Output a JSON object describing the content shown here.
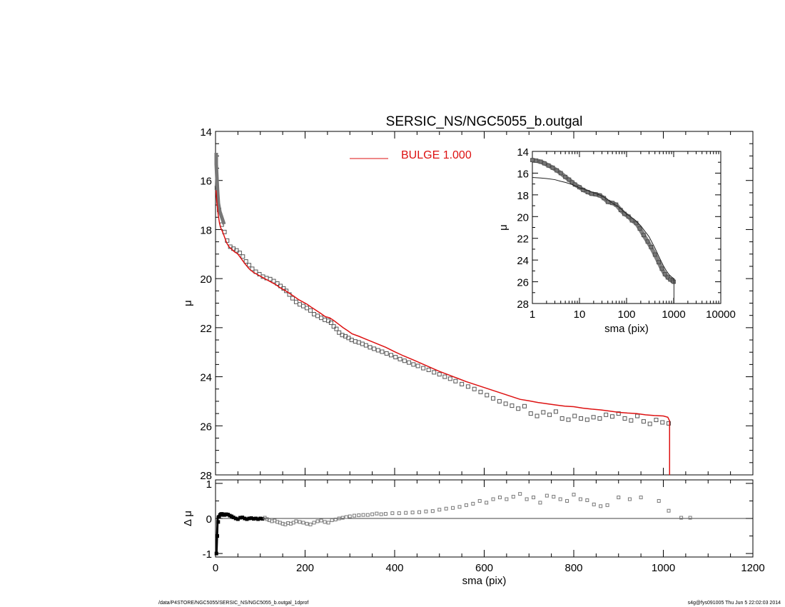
{
  "chart_data": [
    {
      "type": "scatter",
      "panel": "main",
      "title": "SERSIC_NS/NGC5055_b.outgal",
      "xlabel": "",
      "ylabel": "μ",
      "xlim": [
        0,
        1200
      ],
      "ylim": [
        28,
        14
      ],
      "y_inverted": true,
      "x_ticks": [
        0,
        200,
        400,
        600,
        800,
        1000,
        1200
      ],
      "y_ticks": [
        14,
        16,
        18,
        20,
        22,
        24,
        26,
        28
      ],
      "legend": {
        "label": "BULGE  1.000",
        "color": "#dd1111",
        "placement": "top-center"
      },
      "colors": {
        "data": "#555555",
        "model": "#dd1111"
      },
      "series": [
        {
          "name": "data",
          "style": "open-squares",
          "x": [
            3,
            8,
            14,
            20,
            26,
            33,
            40,
            47,
            54,
            61,
            68,
            75,
            82,
            90,
            98,
            106,
            114,
            122,
            130,
            138,
            145,
            152,
            158,
            165,
            172,
            180,
            188,
            196,
            204,
            212,
            220,
            228,
            236,
            244,
            252,
            258,
            264,
            270,
            276,
            283,
            290,
            297,
            304,
            312,
            320,
            328,
            336,
            345,
            354,
            363,
            372,
            382,
            392,
            402,
            412,
            422,
            432,
            442,
            452,
            464,
            476,
            488,
            500,
            512,
            524,
            536,
            550,
            564,
            578,
            592,
            606,
            620,
            634,
            648,
            662,
            676,
            690,
            704,
            718,
            732,
            746,
            760,
            774,
            788,
            802,
            816,
            830,
            844,
            858,
            872,
            886,
            900,
            914,
            928,
            942,
            956,
            970,
            984,
            998,
            1012
          ],
          "y": [
            16.3,
            17.2,
            17.8,
            18.1,
            18.45,
            18.7,
            18.78,
            18.85,
            18.95,
            19.1,
            19.3,
            19.45,
            19.6,
            19.72,
            19.82,
            19.92,
            19.98,
            20.02,
            20.1,
            20.2,
            20.3,
            20.4,
            20.5,
            20.65,
            20.8,
            20.95,
            21.05,
            21.12,
            21.2,
            21.3,
            21.45,
            21.52,
            21.6,
            21.68,
            21.72,
            21.8,
            21.95,
            22.05,
            22.2,
            22.3,
            22.35,
            22.42,
            22.5,
            22.56,
            22.6,
            22.66,
            22.72,
            22.8,
            22.86,
            22.92,
            22.98,
            23.05,
            23.12,
            23.2,
            23.28,
            23.35,
            23.42,
            23.5,
            23.56,
            23.65,
            23.72,
            23.82,
            23.9,
            24.0,
            24.08,
            24.18,
            24.3,
            24.4,
            24.5,
            24.62,
            24.75,
            24.88,
            25.0,
            25.1,
            25.18,
            25.3,
            25.2,
            25.5,
            25.6,
            25.45,
            25.55,
            25.42,
            25.7,
            25.75,
            25.6,
            25.7,
            25.75,
            25.65,
            25.7,
            25.55,
            25.62,
            25.5,
            25.7,
            25.78,
            25.6,
            25.82,
            25.92,
            25.76,
            25.86,
            25.9
          ]
        },
        {
          "name": "model",
          "style": "line",
          "x": [
            1,
            3,
            6,
            9,
            12,
            16,
            20,
            25,
            30,
            36,
            42,
            50,
            58,
            66,
            75,
            85,
            95,
            105,
            115,
            125,
            135,
            145,
            155,
            165,
            175,
            185,
            195,
            205,
            215,
            225,
            235,
            245,
            255,
            265,
            275,
            285,
            295,
            305,
            320,
            340,
            360,
            380,
            400,
            420,
            440,
            460,
            480,
            500,
            520,
            540,
            560,
            580,
            600,
            620,
            640,
            660,
            680,
            700,
            720,
            740,
            760,
            780,
            800,
            820,
            840,
            860,
            880,
            900,
            920,
            940,
            960,
            980,
            1000,
            1010,
            1014,
            1014
          ],
          "y": [
            16.4,
            16.9,
            17.4,
            17.75,
            17.95,
            18.1,
            18.3,
            18.55,
            18.7,
            18.8,
            18.9,
            19.0,
            19.2,
            19.4,
            19.6,
            19.75,
            19.85,
            19.95,
            20.05,
            20.15,
            20.25,
            20.38,
            20.48,
            20.6,
            20.72,
            20.85,
            20.95,
            21.05,
            21.18,
            21.3,
            21.42,
            21.55,
            21.6,
            21.72,
            21.86,
            22.0,
            22.12,
            22.25,
            22.35,
            22.5,
            22.65,
            22.8,
            22.98,
            23.15,
            23.3,
            23.46,
            23.62,
            23.78,
            23.92,
            24.06,
            24.2,
            24.32,
            24.44,
            24.56,
            24.68,
            24.8,
            24.92,
            24.98,
            25.05,
            25.1,
            25.15,
            25.2,
            25.22,
            25.28,
            25.32,
            25.35,
            25.4,
            25.45,
            25.48,
            25.5,
            25.55,
            25.58,
            25.6,
            25.65,
            25.8,
            28.0
          ]
        }
      ]
    },
    {
      "type": "scatter",
      "panel": "inset",
      "title": "",
      "xlabel": "sma (pix)",
      "ylabel": "μ",
      "x_scale": "log",
      "xlim": [
        1,
        10000
      ],
      "ylim": [
        28,
        14
      ],
      "y_inverted": true,
      "x_ticks": [
        1,
        10,
        100,
        1000,
        10000
      ],
      "y_ticks": [
        14,
        16,
        18,
        20,
        22,
        24,
        26,
        28
      ],
      "colors": {
        "data": "#808080",
        "model": "#222222"
      },
      "series": [
        {
          "name": "data",
          "style": "filled-markers",
          "x": [
            1,
            1.2,
            1.5,
            1.8,
            2.2,
            2.7,
            3.3,
            4,
            5,
            6,
            7,
            8,
            10,
            12,
            15,
            18,
            22,
            27,
            33,
            40,
            50,
            60,
            75,
            90,
            110,
            130,
            160,
            190,
            230,
            280,
            330,
            400,
            480,
            560,
            650,
            750,
            850,
            950,
            1000
          ],
          "y": [
            14.8,
            14.85,
            14.95,
            15.1,
            15.3,
            15.5,
            15.75,
            16.0,
            16.35,
            16.6,
            16.85,
            17.05,
            17.3,
            17.55,
            17.75,
            17.9,
            17.95,
            18.05,
            18.3,
            18.65,
            18.75,
            18.9,
            19.4,
            19.75,
            20.0,
            20.35,
            20.6,
            21.1,
            21.7,
            22.3,
            22.8,
            23.5,
            24.2,
            24.8,
            25.3,
            25.6,
            25.8,
            25.9,
            26.0
          ]
        },
        {
          "name": "model",
          "style": "line",
          "x": [
            1,
            1.5,
            2,
            3,
            4,
            5,
            7,
            10,
            15,
            20,
            30,
            40,
            50,
            70,
            100,
            150,
            200,
            300,
            400,
            500,
            600,
            700,
            800,
            900,
            1000,
            1014,
            1014
          ],
          "y": [
            16.4,
            16.45,
            16.5,
            16.6,
            16.75,
            16.85,
            17.05,
            17.35,
            17.6,
            17.8,
            18.1,
            18.45,
            18.75,
            19.15,
            19.75,
            20.3,
            20.85,
            21.85,
            22.9,
            23.8,
            24.5,
            25.0,
            25.35,
            25.55,
            25.7,
            25.75,
            28.0
          ]
        }
      ]
    },
    {
      "type": "scatter",
      "panel": "residual",
      "title": "",
      "xlabel": "sma (pix)",
      "ylabel": "Δ μ",
      "xlim": [
        0,
        1200
      ],
      "ylim": [
        -1.1,
        1.1
      ],
      "x_ticks": [
        0,
        200,
        400,
        600,
        800,
        1000,
        1200
      ],
      "y_ticks": [
        -1,
        0,
        1
      ],
      "zero_line": true,
      "colors": {
        "inner": "#000000",
        "outer": "#777777"
      },
      "series": [
        {
          "name": "residual",
          "style": "squares",
          "x": [
            2,
            4,
            6,
            8,
            10,
            12,
            14,
            16,
            18,
            20,
            24,
            28,
            32,
            36,
            40,
            45,
            50,
            55,
            60,
            65,
            70,
            75,
            80,
            85,
            90,
            95,
            100,
            105,
            110,
            115,
            120,
            126,
            132,
            138,
            144,
            150,
            156,
            162,
            168,
            174,
            180,
            188,
            196,
            204,
            212,
            220,
            228,
            236,
            244,
            252,
            260,
            268,
            276,
            284,
            292,
            300,
            310,
            320,
            330,
            340,
            350,
            360,
            370,
            380,
            395,
            410,
            425,
            440,
            455,
            470,
            485,
            500,
            515,
            530,
            545,
            560,
            575,
            590,
            605,
            620,
            635,
            650,
            665,
            680,
            695,
            710,
            725,
            740,
            755,
            770,
            785,
            800,
            815,
            830,
            845,
            860,
            875,
            900,
            925,
            950,
            990,
            1012,
            1040,
            1060
          ],
          "y": [
            -1.0,
            -0.5,
            -0.1,
            0.05,
            0.1,
            0.12,
            0.13,
            0.12,
            0.1,
            0.1,
            0.12,
            0.11,
            0.08,
            0.06,
            0.03,
            0.0,
            -0.02,
            0.02,
            0.03,
            0.0,
            -0.02,
            0.0,
            0.01,
            -0.01,
            0.0,
            -0.02,
            0.0,
            -0.01,
            0.02,
            -0.02,
            -0.05,
            -0.08,
            -0.06,
            -0.1,
            -0.12,
            -0.15,
            -0.17,
            -0.13,
            -0.15,
            -0.12,
            -0.08,
            -0.1,
            -0.12,
            -0.15,
            -0.17,
            -0.12,
            -0.08,
            -0.06,
            -0.1,
            -0.12,
            -0.05,
            -0.03,
            0.0,
            0.02,
            0.04,
            0.06,
            0.08,
            0.09,
            0.1,
            0.1,
            0.12,
            0.14,
            0.12,
            0.13,
            0.15,
            0.15,
            0.16,
            0.17,
            0.18,
            0.2,
            0.21,
            0.25,
            0.28,
            0.3,
            0.33,
            0.38,
            0.42,
            0.5,
            0.45,
            0.55,
            0.6,
            0.55,
            0.62,
            0.7,
            0.55,
            0.6,
            0.45,
            0.65,
            0.62,
            0.55,
            0.5,
            0.68,
            0.55,
            0.52,
            0.4,
            0.35,
            0.38,
            0.6,
            0.55,
            0.6,
            0.5,
            0.22,
            0.02,
            0.02
          ]
        }
      ]
    }
  ],
  "footer": {
    "path": "/data/P4STORE/NGC5055/SERSIC_NS/NGC5055_b.outgal_1dprof",
    "stamp": "s4g@fys091005  Thu Jun  5 22:02:03 2014"
  }
}
